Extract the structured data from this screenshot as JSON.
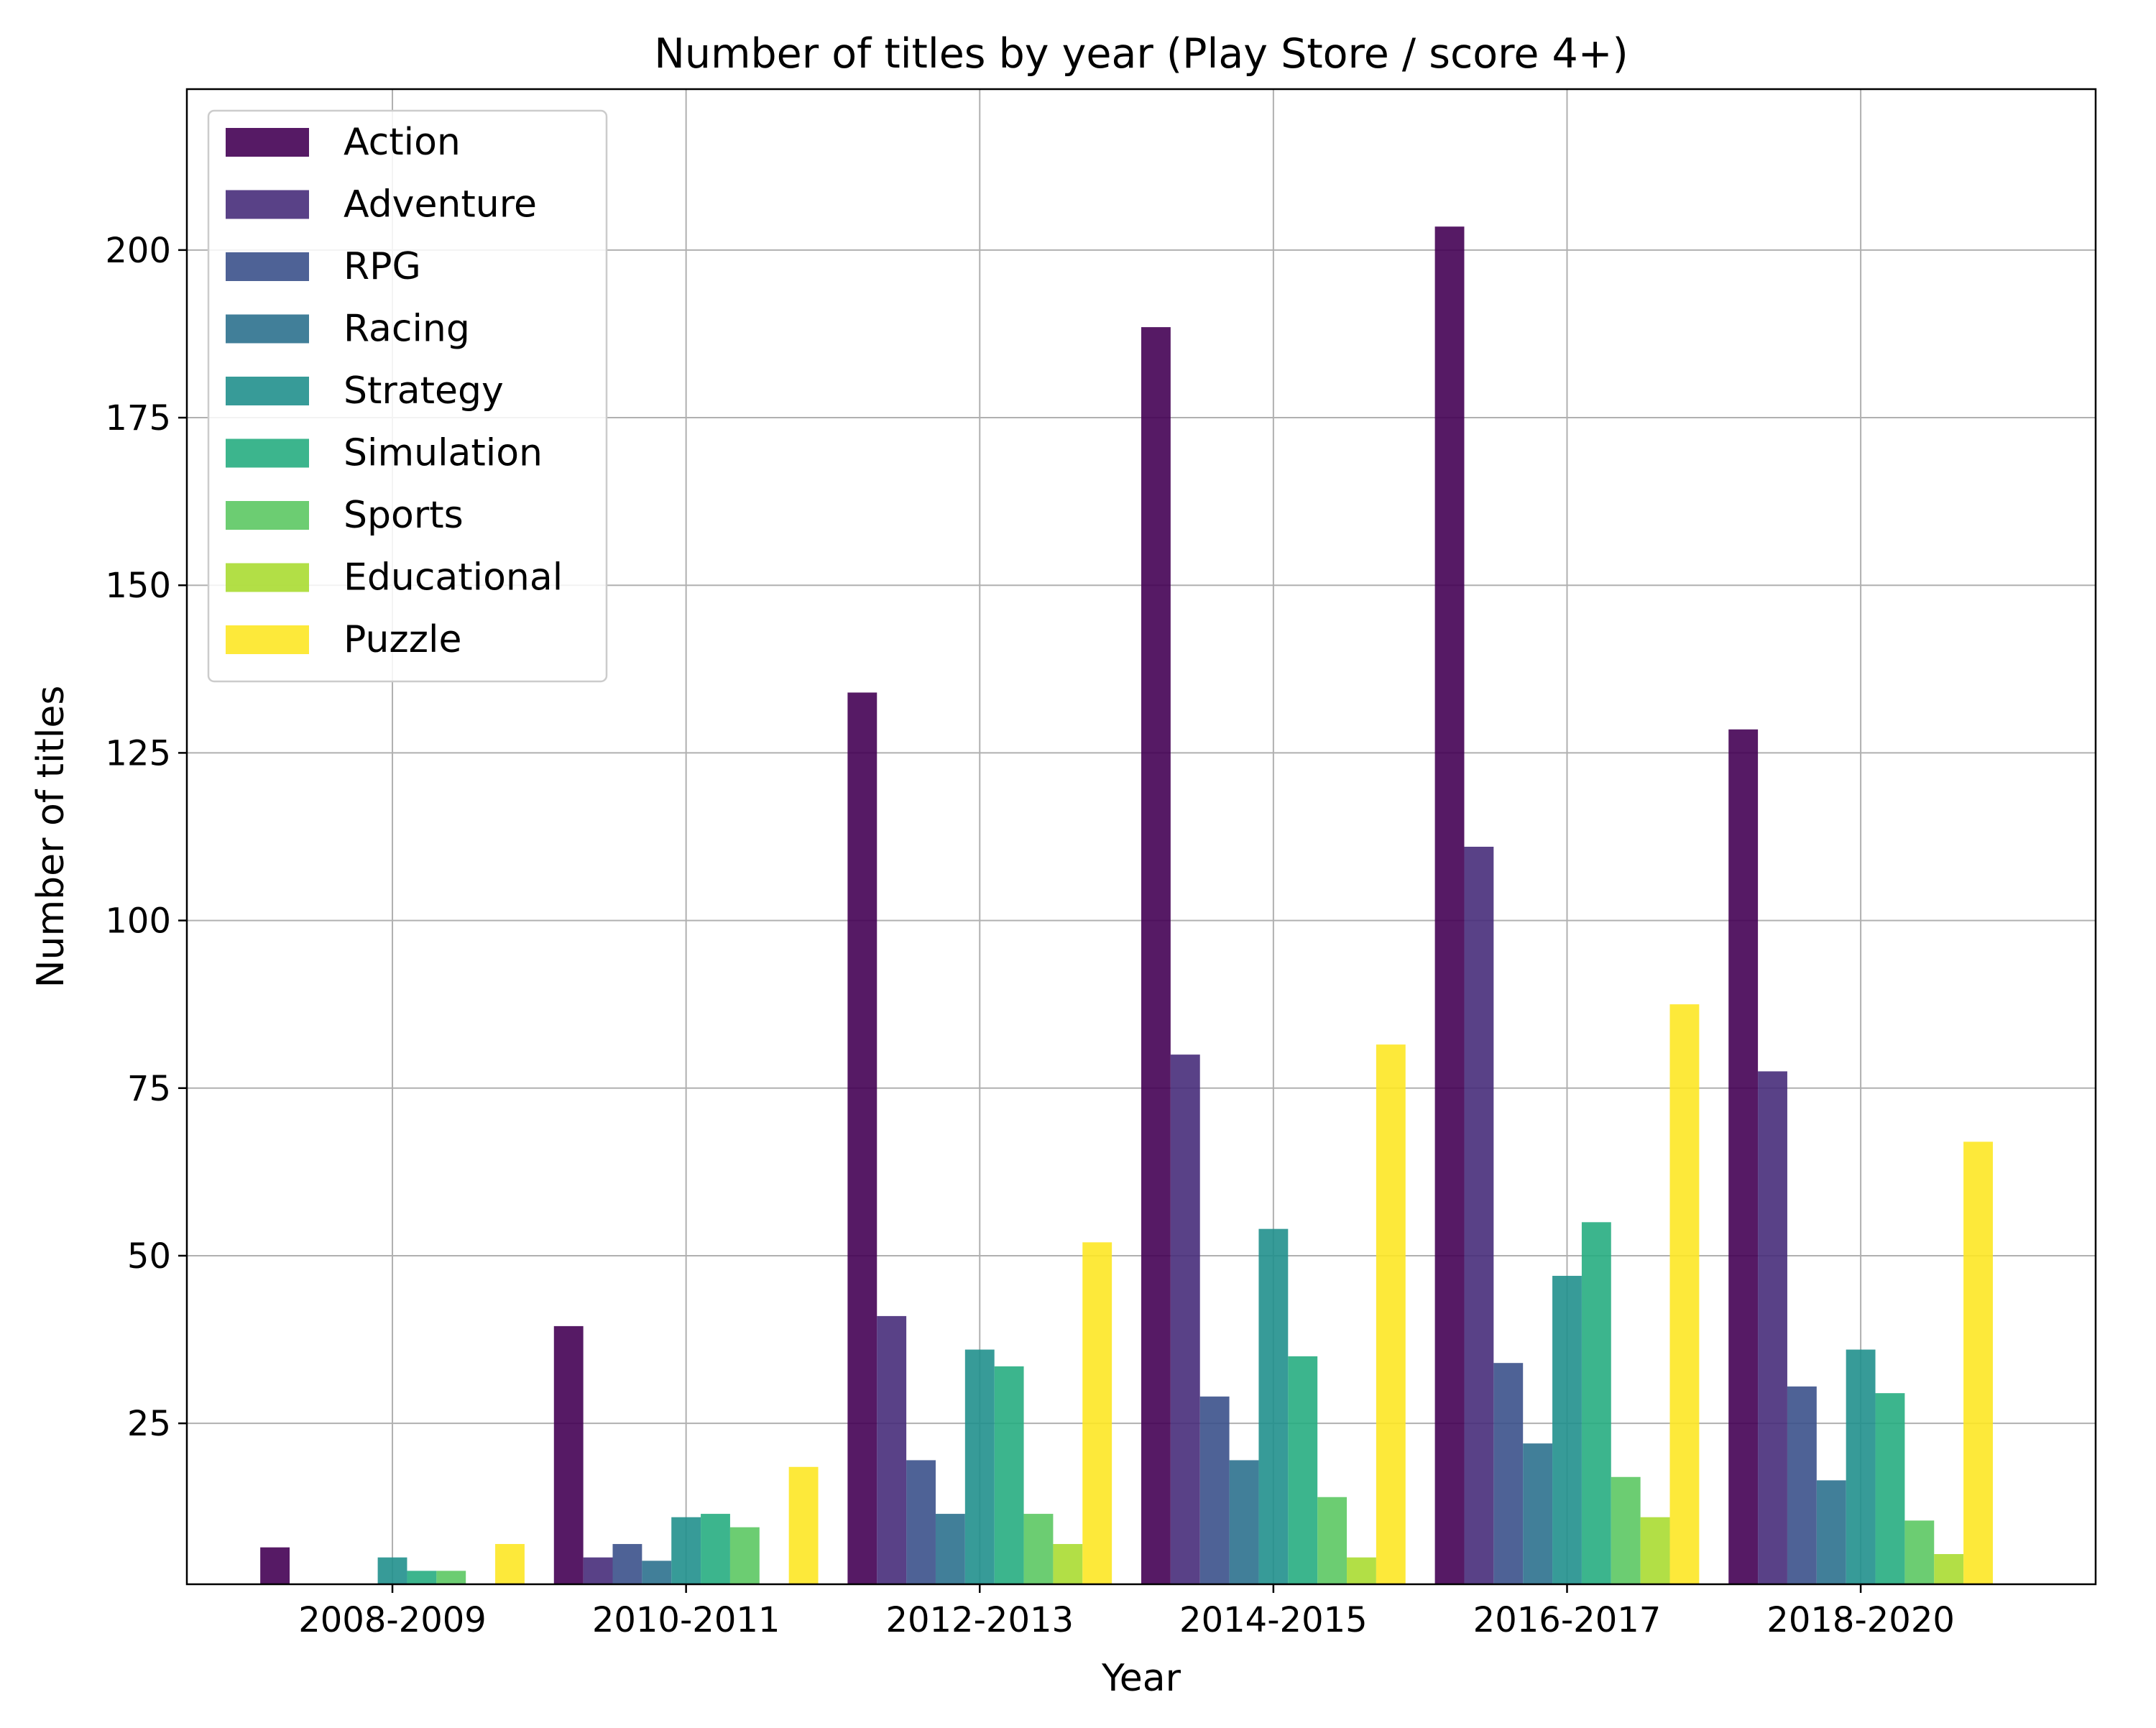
{
  "chart_data": {
    "type": "bar",
    "title": "Number of titles by year (Play Store / score 4+)",
    "xlabel": "Year",
    "ylabel": "Number of titles",
    "ylim": [
      1,
      224
    ],
    "yticks": [
      25,
      50,
      75,
      100,
      125,
      150,
      175,
      200
    ],
    "grid": true,
    "legend_position": "top-left",
    "categories": [
      "2008-2009",
      "2010-2011",
      "2012-2013",
      "2014-2015",
      "2016-2017",
      "2018-2020"
    ],
    "series": [
      {
        "name": "Action",
        "color": "#440154",
        "values": [
          6.5,
          39.5,
          134,
          188.5,
          203.5,
          128.5
        ]
      },
      {
        "name": "Adventure",
        "color": "#472c7a",
        "values": [
          0,
          5,
          41,
          80,
          111,
          77.5
        ]
      },
      {
        "name": "RPG",
        "color": "#3b518b",
        "values": [
          0,
          7,
          19.5,
          29,
          34,
          30.5
        ]
      },
      {
        "name": "Racing",
        "color": "#2c718e",
        "values": [
          0,
          4.5,
          11.5,
          19.5,
          22,
          16.5
        ]
      },
      {
        "name": "Strategy",
        "color": "#21908d",
        "values": [
          5,
          11,
          36,
          54,
          47,
          36
        ]
      },
      {
        "name": "Simulation",
        "color": "#27ad81",
        "values": [
          3,
          11.5,
          33.5,
          35,
          55,
          29.5
        ]
      },
      {
        "name": "Sports",
        "color": "#5cc863",
        "values": [
          3,
          9.5,
          11.5,
          14,
          17,
          10.5
        ]
      },
      {
        "name": "Educational",
        "color": "#aadc32",
        "values": [
          0,
          0,
          7,
          5,
          11,
          5.5
        ]
      },
      {
        "name": "Puzzle",
        "color": "#fde725",
        "values": [
          7,
          18.5,
          52,
          81.5,
          87.5,
          67
        ]
      }
    ]
  }
}
